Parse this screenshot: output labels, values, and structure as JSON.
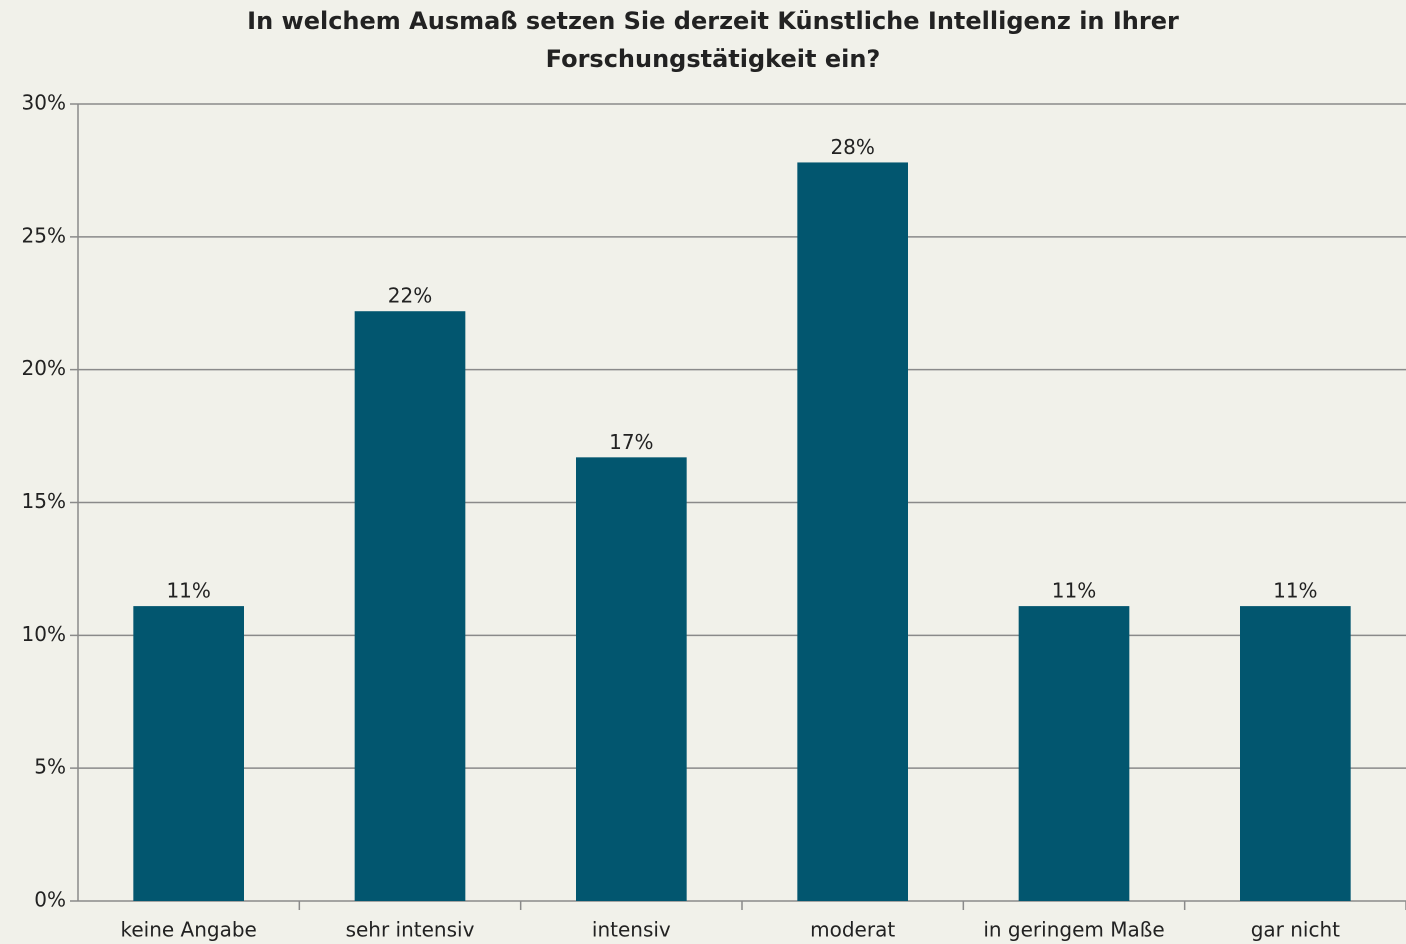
{
  "chart_data": {
    "type": "bar",
    "title": "In welchem Ausmaß setzen Sie derzeit Künstliche Intelligenz in Ihrer Forschungstätigkeit ein?",
    "categories": [
      "keine Angabe",
      "sehr intensiv",
      "intensiv",
      "moderat",
      "in geringem Maße",
      "gar nicht"
    ],
    "values": [
      11.1,
      22.2,
      16.7,
      27.8,
      11.1,
      11.1
    ],
    "value_labels": [
      "11%",
      "22%",
      "17%",
      "28%",
      "11%",
      "11%"
    ],
    "color": "#02566f",
    "ylim": [
      0,
      30
    ],
    "yticks": [
      {
        "value": 0,
        "label": "0%"
      },
      {
        "value": 5,
        "label": "5%"
      },
      {
        "value": 10,
        "label": "10%"
      },
      {
        "value": 15,
        "label": "15%"
      },
      {
        "value": 20,
        "label": "20%"
      },
      {
        "value": 25,
        "label": "25%"
      },
      {
        "value": 30,
        "label": "30%"
      }
    ],
    "grid": true
  }
}
